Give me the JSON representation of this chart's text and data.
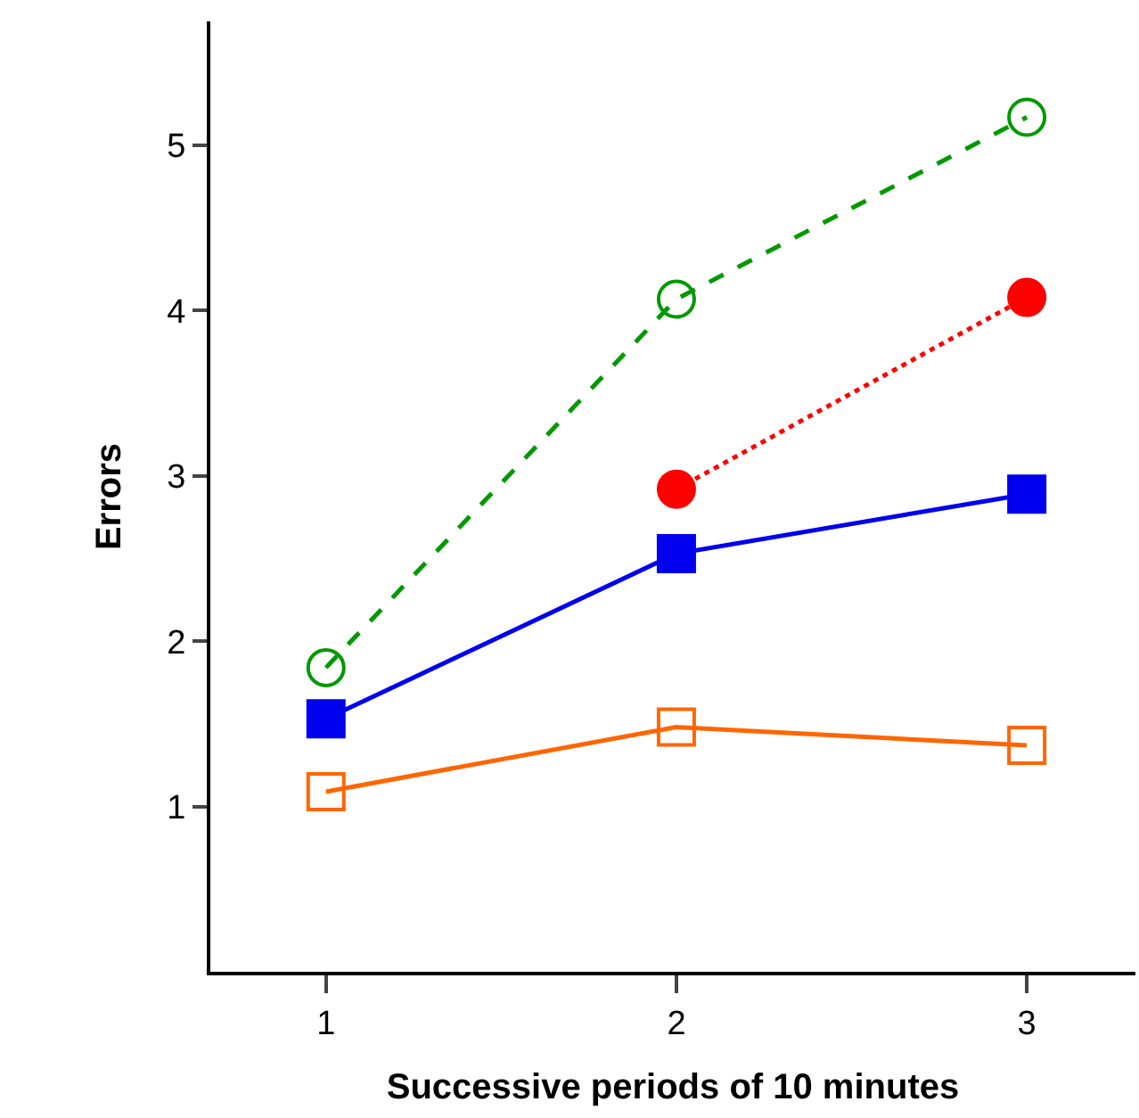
{
  "chart_data": {
    "type": "line",
    "xlabel": "Successive periods of 10 minutes",
    "ylabel": "Errors",
    "x": [
      1,
      2,
      3
    ],
    "xlim": [
      0.67,
      3.31
    ],
    "xticks": [
      1,
      2,
      3
    ],
    "ylim": [
      0,
      5.75
    ],
    "yticks": [
      1,
      2,
      3,
      4,
      5
    ],
    "grid": false,
    "legend": false,
    "series": [
      {
        "color": "#009900",
        "values": [
          1.84,
          4.07,
          5.17
        ],
        "marker": "circle",
        "line_style": "dashed"
      },
      {
        "color": "#ff0000",
        "values": [
          null,
          2.92,
          4.08
        ],
        "marker": "circle",
        "line_style": "dotted"
      },
      {
        "color": "#0000ee",
        "values": [
          1.53,
          2.53,
          2.89
        ],
        "marker": "square",
        "line_style": "solid"
      },
      {
        "color": "#ff6600",
        "values": [
          1.09,
          1.48,
          1.37
        ],
        "marker": "square",
        "line_style": "solid"
      }
    ]
  }
}
